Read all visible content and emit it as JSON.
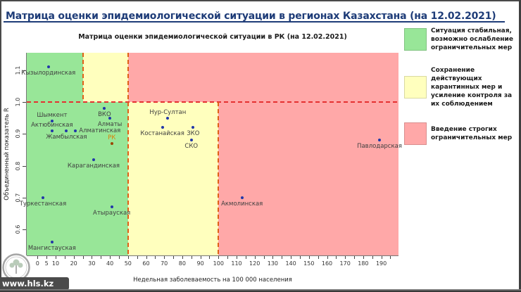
{
  "header": {
    "title": "Матрица оценки эпидемиологической ситуации в регионах Казахстана (на 12.02.2021)"
  },
  "watermark": {
    "site": "www.hls.kz",
    "logo": "tree-emblem"
  },
  "colors": {
    "title": "#1E3C78",
    "zone_green": "#98E698",
    "zone_yellow": "#FFFFBE",
    "zone_pink": "#FFA8A8",
    "dashed_horizontal": "#E53030",
    "dashed_vertical": "#E06018",
    "point": "#2237A8",
    "point_special": "#9C4500",
    "point_label": "#3F3F3F",
    "point_label_special": "#D9820A"
  },
  "chart_data": {
    "type": "scatter",
    "title": "Матрица оценки эпидемиологической ситуации в РК (на 12.02.2021)",
    "xlabel": "Недельная заболеваемость на 100 000 населения",
    "ylabel": "Объединенный показатель R",
    "xlim": [
      -6,
      200
    ],
    "ylim": [
      0.52,
      1.155
    ],
    "x_ticks": [
      0,
      5,
      10,
      20,
      30,
      40,
      50,
      60,
      70,
      80,
      90,
      100,
      110,
      120,
      130,
      140,
      150,
      160,
      170,
      180,
      190
    ],
    "x_minor_step": 5,
    "x_minor_max": 195,
    "y_ticks": [
      "0.6",
      "0.7",
      "0.8",
      "0.9",
      "1.0",
      "1.1"
    ],
    "r_threshold": 1.0,
    "zones_above_threshold": [
      {
        "x_to": 25,
        "color_key": "zone_green"
      },
      {
        "x_to": 50,
        "color_key": "zone_yellow"
      },
      {
        "x_to": null,
        "color_key": "zone_pink"
      }
    ],
    "zones_below_threshold": [
      {
        "x_to": 50,
        "color_key": "zone_green"
      },
      {
        "x_to": 100,
        "color_key": "zone_yellow"
      },
      {
        "x_to": null,
        "color_key": "zone_pink"
      }
    ],
    "points": [
      {
        "name": "Кызылординская",
        "x": 6,
        "r": 1.11,
        "label_pos": "below"
      },
      {
        "name": "Шымкент",
        "x": 8,
        "r": 0.94,
        "label_pos": "above"
      },
      {
        "name": "Актюбинская",
        "x": 8,
        "r": 0.91,
        "label_pos": "above"
      },
      {
        "name": "Жамбылская",
        "x": 16,
        "r": 0.91,
        "label_pos": "below"
      },
      {
        "name": "Алматинская",
        "x": 21,
        "r": 0.91,
        "label_pos": "right"
      },
      {
        "name": "ВКО",
        "x": 37,
        "r": 0.98,
        "label_pos": "below"
      },
      {
        "name": "Алматы",
        "x": 40,
        "r": 0.95,
        "label_pos": "below"
      },
      {
        "name": "РК",
        "x": 41,
        "r": 0.87,
        "label_pos": "above",
        "special": true
      },
      {
        "name": "Карагандинская",
        "x": 31,
        "r": 0.82,
        "label_pos": "below"
      },
      {
        "name": "Туркестанская",
        "x": 3,
        "r": 0.7,
        "label_pos": "below"
      },
      {
        "name": "Атырауская",
        "x": 41,
        "r": 0.67,
        "label_pos": "below"
      },
      {
        "name": "Мангистауская",
        "x": 8,
        "r": 0.56,
        "label_pos": "below"
      },
      {
        "name": "Нур-Султан",
        "x": 72,
        "r": 0.95,
        "label_pos": "above"
      },
      {
        "name": "Костанайская",
        "x": 69,
        "r": 0.92,
        "label_pos": "below"
      },
      {
        "name": "ЗКО",
        "x": 86,
        "r": 0.92,
        "label_pos": "below"
      },
      {
        "name": "СКО",
        "x": 85,
        "r": 0.88,
        "label_pos": "below"
      },
      {
        "name": "Акмолинская",
        "x": 113,
        "r": 0.7,
        "label_pos": "below"
      },
      {
        "name": "Павлодарская",
        "x": 189,
        "r": 0.88,
        "label_pos": "below"
      }
    ]
  },
  "legend": {
    "items": [
      {
        "color": "#98E698",
        "label": "Ситуация стабильная, возможно ослабление ограничительных мер"
      },
      {
        "color": "#FFFFBE",
        "label": "Сохранение действующих карантинных мер и усиление контроля за их соблюдением"
      },
      {
        "color": "#FFA8A8",
        "label": "Введение строгих ограничительных мер"
      }
    ]
  }
}
